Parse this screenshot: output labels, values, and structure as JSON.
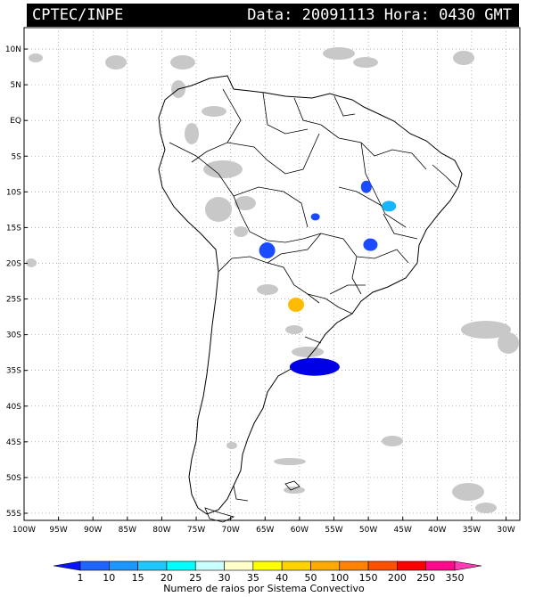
{
  "header": {
    "source": "CPTEC/INPE",
    "datetime": "Data: 20091113 Hora: 0430 GMT"
  },
  "axes": {
    "latitude_labels": [
      "10N",
      "5N",
      "EQ",
      "5S",
      "10S",
      "15S",
      "20S",
      "25S",
      "30S",
      "35S",
      "40S",
      "45S",
      "50S",
      "55S"
    ],
    "longitude_labels": [
      "100W",
      "95W",
      "90W",
      "85W",
      "80W",
      "75W",
      "70W",
      "65W",
      "60W",
      "55W",
      "50W",
      "45W",
      "40W",
      "35W",
      "30W"
    ]
  },
  "map": {
    "region": "South America",
    "gridlines": true,
    "cloud_color": "#c8c8c8",
    "convective_systems": [
      {
        "lon": -50.3,
        "lat": -9.3,
        "rays": "1-10",
        "color": "#1a4bff"
      },
      {
        "lon": -47.0,
        "lat": -12.0,
        "rays": "15-20",
        "color": "#17b4ff"
      },
      {
        "lon": -57.7,
        "lat": -13.5,
        "rays": "1-10",
        "color": "#1a4bff"
      },
      {
        "lon": -64.7,
        "lat": -18.2,
        "rays": "1-10",
        "color": "#1a4bff"
      },
      {
        "lon": -49.7,
        "lat": -17.4,
        "rays": "1-10",
        "color": "#1a4bff"
      },
      {
        "lon": -60.5,
        "lat": -25.8,
        "rays": "40-50",
        "color": "#ffbb00"
      },
      {
        "lon": -57.8,
        "lat": -34.5,
        "rays": "1-10",
        "color": "#0000e6"
      }
    ]
  },
  "legend": {
    "title": "Numero de raios por Sistema Convectivo",
    "ticks": [
      "1",
      "10",
      "15",
      "20",
      "25",
      "30",
      "35",
      "40",
      "50",
      "100",
      "150",
      "200",
      "250",
      "350"
    ],
    "colors": [
      "#0a14ff",
      "#1e64ff",
      "#1e96ff",
      "#1ec8ff",
      "#00ffff",
      "#c8ffff",
      "#ffffc8",
      "#ffff00",
      "#ffd200",
      "#ffaa00",
      "#ff8200",
      "#ff5000",
      "#ff0000",
      "#ff0a8c",
      "#ff3cb4"
    ]
  }
}
